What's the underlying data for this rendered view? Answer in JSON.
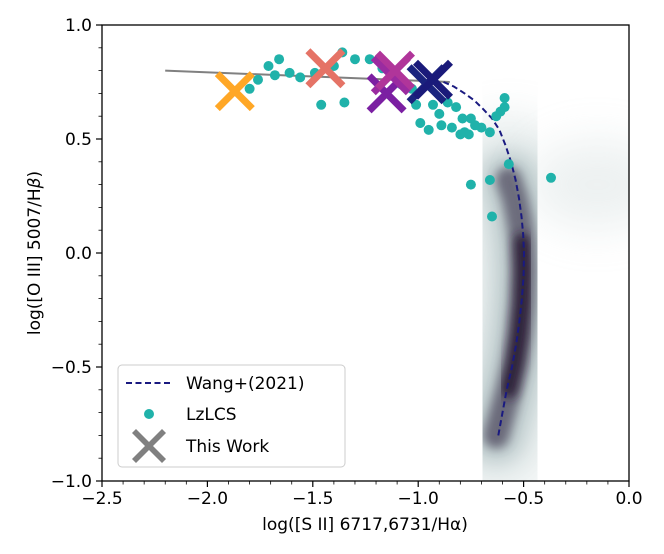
{
  "chart_data": {
    "type": "scatter",
    "xlabel": "log([S II] 6717,6731/Hα)",
    "ylabel_main": "log([O III] 5007/H",
    "ylabel_greek": "β",
    "ylabel_close": ")",
    "xlim": [
      -2.5,
      0.0
    ],
    "ylim": [
      -1.0,
      1.0
    ],
    "xticks": [
      -2.5,
      -2.0,
      -1.5,
      -1.0,
      -0.5,
      0.0
    ],
    "xtick_labels": [
      "−2.5",
      "−2.0",
      "−1.5",
      "−1.0",
      "−0.5",
      "0.0"
    ],
    "yticks": [
      -1.0,
      -0.5,
      0.0,
      0.5,
      1.0
    ],
    "ytick_labels": [
      "−1.0",
      "−0.5",
      "0.0",
      "0.5",
      "1.0"
    ],
    "grid": false,
    "legend": {
      "position": "lower-left",
      "entries": [
        "Wang+(2021)",
        "LzLCS",
        "This Work"
      ]
    },
    "wang_curve": {
      "name": "Wang+(2021)",
      "color": "#1a1a80",
      "x": [
        -0.62,
        -0.6,
        -0.58,
        -0.555,
        -0.535,
        -0.52,
        -0.508,
        -0.5,
        -0.498,
        -0.502,
        -0.51,
        -0.522,
        -0.538,
        -0.56,
        -0.585,
        -0.615,
        -0.65,
        -0.69,
        -0.735,
        -0.78,
        -0.83,
        -0.88
      ],
      "y": [
        -0.8,
        -0.7,
        -0.6,
        -0.5,
        -0.4,
        -0.3,
        -0.2,
        -0.1,
        0.0,
        0.08,
        0.16,
        0.24,
        0.32,
        0.4,
        0.47,
        0.54,
        0.59,
        0.63,
        0.67,
        0.7,
        0.73,
        0.75
      ]
    },
    "density_ridge": {
      "x": [
        -0.63,
        -0.6,
        -0.57,
        -0.54,
        -0.52,
        -0.505,
        -0.5,
        -0.505,
        -0.52,
        -0.54,
        -0.57
      ],
      "y": [
        -0.8,
        -0.7,
        -0.6,
        -0.48,
        -0.36,
        -0.22,
        -0.08,
        0.05,
        0.15,
        0.24,
        0.32
      ]
    },
    "reference_line": {
      "x": [
        -2.2,
        -0.85
      ],
      "y": [
        0.8,
        0.75
      ],
      "color": "#808080"
    },
    "lzlcs": {
      "name": "LzLCS",
      "color": "#20b2aa",
      "points": [
        [
          -1.8,
          0.72
        ],
        [
          -1.76,
          0.76
        ],
        [
          -1.71,
          0.82
        ],
        [
          -1.68,
          0.78
        ],
        [
          -1.66,
          0.85
        ],
        [
          -1.61,
          0.79
        ],
        [
          -1.56,
          0.77
        ],
        [
          -1.49,
          0.79
        ],
        [
          -1.46,
          0.65
        ],
        [
          -1.4,
          0.82
        ],
        [
          -1.36,
          0.88
        ],
        [
          -1.35,
          0.66
        ],
        [
          -1.3,
          0.85
        ],
        [
          -1.23,
          0.85
        ],
        [
          -1.17,
          0.81
        ],
        [
          -1.08,
          0.74
        ],
        [
          -1.03,
          0.72
        ],
        [
          -1.01,
          0.65
        ],
        [
          -0.99,
          0.57
        ],
        [
          -0.95,
          0.54
        ],
        [
          -0.93,
          0.65
        ],
        [
          -0.9,
          0.61
        ],
        [
          -0.89,
          0.56
        ],
        [
          -0.86,
          0.66
        ],
        [
          -0.84,
          0.55
        ],
        [
          -0.82,
          0.64
        ],
        [
          -0.8,
          0.52
        ],
        [
          -0.79,
          0.59
        ],
        [
          -0.78,
          0.53
        ],
        [
          -0.76,
          0.52
        ],
        [
          -0.75,
          0.59
        ],
        [
          -0.73,
          0.56
        ],
        [
          -0.7,
          0.55
        ],
        [
          -0.66,
          0.53
        ],
        [
          -0.63,
          0.6
        ],
        [
          -0.61,
          0.62
        ],
        [
          -0.59,
          0.68
        ],
        [
          -0.59,
          0.64
        ],
        [
          -0.57,
          0.39
        ],
        [
          -0.66,
          0.32
        ],
        [
          -0.75,
          0.3
        ],
        [
          -0.65,
          0.16
        ],
        [
          -0.37,
          0.33
        ]
      ]
    },
    "this_work": {
      "name": "This Work",
      "points": [
        {
          "x": -1.87,
          "y": 0.71,
          "color": "#ffa726"
        },
        {
          "x": -1.44,
          "y": 0.81,
          "color": "#e57366"
        },
        {
          "x": -1.15,
          "y": 0.7,
          "color": "#7b1fa2"
        },
        {
          "x": -1.13,
          "y": 0.78,
          "color": "#9a2ba0"
        },
        {
          "x": -1.11,
          "y": 0.8,
          "color": "#b0359a"
        },
        {
          "x": -0.96,
          "y": 0.74,
          "color": "#1a237e"
        },
        {
          "x": -0.93,
          "y": 0.76,
          "color": "#1a1a7a"
        }
      ],
      "legend_color": "#808080"
    },
    "density_color": "#2a1f35"
  }
}
